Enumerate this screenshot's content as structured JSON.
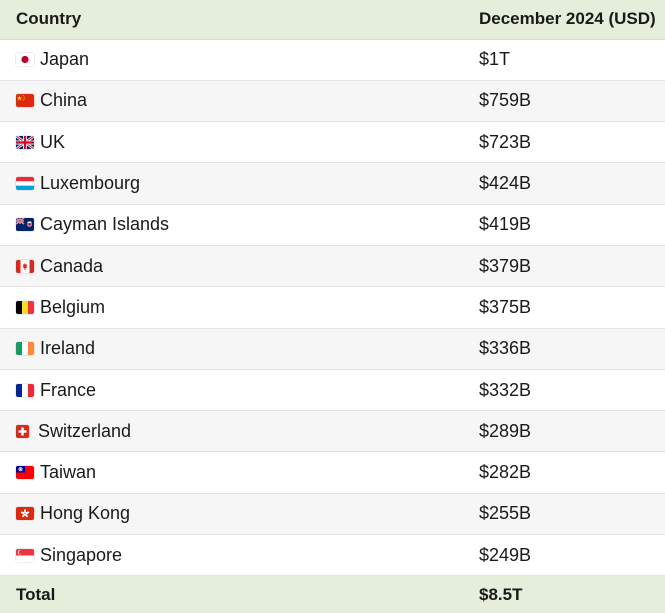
{
  "header": {
    "country": "Country",
    "value": "December 2024 (USD)"
  },
  "rows": [
    {
      "country": "Japan",
      "value": "$1T",
      "flag": "japan-flag-icon"
    },
    {
      "country": "China",
      "value": "$759B",
      "flag": "china-flag-icon"
    },
    {
      "country": "UK",
      "value": "$723B",
      "flag": "uk-flag-icon"
    },
    {
      "country": "Luxembourg",
      "value": "$424B",
      "flag": "luxembourg-flag-icon"
    },
    {
      "country": "Cayman Islands",
      "value": "$419B",
      "flag": "cayman-islands-flag-icon"
    },
    {
      "country": "Canada",
      "value": "$379B",
      "flag": "canada-flag-icon"
    },
    {
      "country": "Belgium",
      "value": "$375B",
      "flag": "belgium-flag-icon"
    },
    {
      "country": "Ireland",
      "value": "$336B",
      "flag": "ireland-flag-icon"
    },
    {
      "country": "France",
      "value": "$332B",
      "flag": "france-flag-icon"
    },
    {
      "country": "Switzerland",
      "value": "$289B",
      "flag": "switzerland-flag-icon"
    },
    {
      "country": "Taiwan",
      "value": "$282B",
      "flag": "taiwan-flag-icon"
    },
    {
      "country": "Hong Kong",
      "value": "$255B",
      "flag": "hong-kong-flag-icon"
    },
    {
      "country": "Singapore",
      "value": "$249B",
      "flag": "singapore-flag-icon"
    }
  ],
  "footer": {
    "label": "Total",
    "value": "$8.5T"
  },
  "colors": {
    "header_bg": "#e4eedb",
    "stripe": "#f6f6f6",
    "border": "#e3e3e3"
  }
}
